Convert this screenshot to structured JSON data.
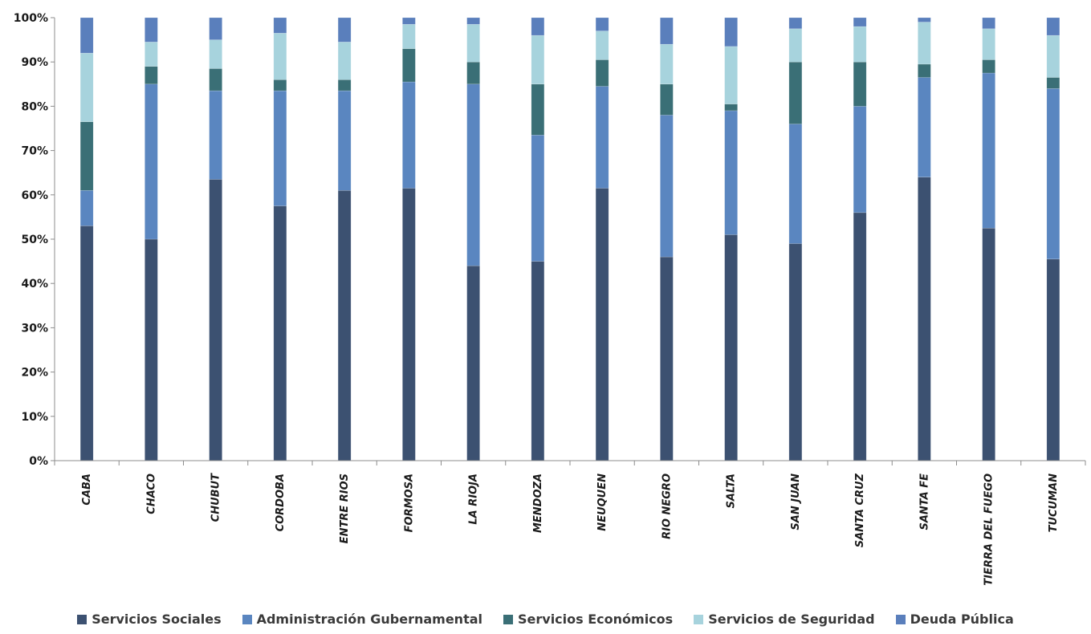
{
  "chart_data": {
    "type": "bar",
    "stacked": true,
    "percent": true,
    "categories": [
      "CABA",
      "CHACO",
      "CHUBUT",
      "CORDOBA",
      "ENTRE RIOS",
      "FORMOSA",
      "LA RIOJA",
      "MENDOZA",
      "NEUQUEN",
      "RIO NEGRO",
      "SALTA",
      "SAN JUAN",
      "SANTA CRUZ",
      "SANTA FE",
      "TIERRA DEL FUEGO",
      "TUCUMAN"
    ],
    "series": [
      {
        "name": "Servicios Sociales",
        "color": "#3c5171",
        "values": [
          53,
          50,
          63.5,
          57.5,
          61,
          61.5,
          44,
          45,
          61.5,
          46,
          51,
          49,
          56,
          64,
          52.5,
          45.5
        ]
      },
      {
        "name": "Administración Gubernamental",
        "color": "#5a86c0",
        "values": [
          8,
          35,
          20,
          26,
          22.5,
          24,
          41,
          28.5,
          23,
          32,
          28,
          27,
          24,
          22.5,
          35,
          38.5
        ]
      },
      {
        "name": "Servicios Económicos",
        "color": "#3a6f76",
        "values": [
          15.5,
          4,
          5,
          2.5,
          2.5,
          7.5,
          5,
          11.5,
          6,
          7,
          1.5,
          14,
          10,
          3,
          3,
          2.5
        ]
      },
      {
        "name": "Servicios de Seguridad",
        "color": "#a7d3dd",
        "values": [
          15.5,
          5.5,
          6.5,
          10.5,
          8.5,
          5.5,
          8.5,
          11,
          6.5,
          9,
          13,
          7.5,
          8,
          9.5,
          7,
          9.5
        ]
      },
      {
        "name": "Deuda Pública",
        "color": "#5a7fbc",
        "values": [
          8,
          5.5,
          5,
          3.5,
          5.5,
          1.5,
          1.5,
          4,
          3,
          6,
          6.5,
          2.5,
          2,
          1,
          2.5,
          4
        ]
      }
    ],
    "y_ticks": [
      "0%",
      "10%",
      "20%",
      "30%",
      "40%",
      "50%",
      "60%",
      "70%",
      "80%",
      "90%",
      "100%"
    ],
    "ylim": [
      0,
      100
    ],
    "grid": false,
    "legend_position": "bottom",
    "title": "",
    "xlabel": "",
    "ylabel": ""
  }
}
